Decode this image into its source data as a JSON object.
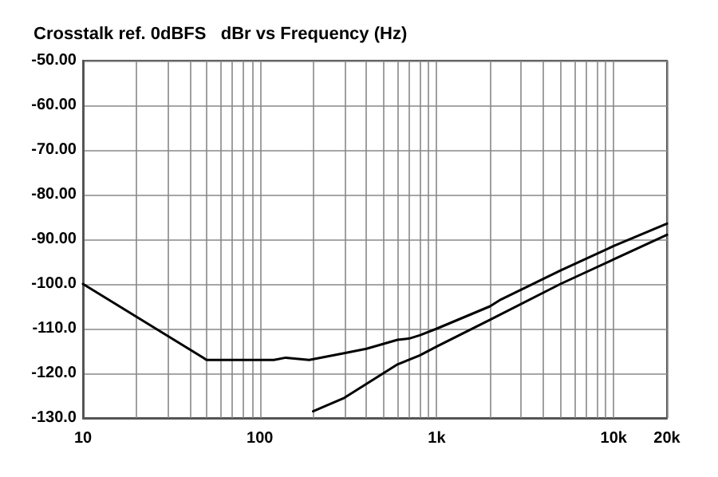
{
  "chart_data": {
    "type": "line",
    "title": "Crosstalk ref. 0dBFS   dBr vs Frequency (Hz)",
    "log": "x",
    "grid": true,
    "marker": "none",
    "line_style": "solid",
    "xlim": [
      10,
      20000
    ],
    "xticks": [
      {
        "value": 10,
        "label": "10"
      },
      {
        "value": 20,
        "label": null
      },
      {
        "value": 30,
        "label": null
      },
      {
        "value": 40,
        "label": null
      },
      {
        "value": 50,
        "label": null
      },
      {
        "value": 60,
        "label": null
      },
      {
        "value": 70,
        "label": null
      },
      {
        "value": 80,
        "label": null
      },
      {
        "value": 90,
        "label": null
      },
      {
        "value": 100,
        "label": "100"
      },
      {
        "value": 200,
        "label": null
      },
      {
        "value": 300,
        "label": null
      },
      {
        "value": 400,
        "label": null
      },
      {
        "value": 500,
        "label": null
      },
      {
        "value": 600,
        "label": null
      },
      {
        "value": 700,
        "label": null
      },
      {
        "value": 800,
        "label": null
      },
      {
        "value": 900,
        "label": null
      },
      {
        "value": 1000,
        "label": "1k"
      },
      {
        "value": 2000,
        "label": null
      },
      {
        "value": 3000,
        "label": null
      },
      {
        "value": 4000,
        "label": null
      },
      {
        "value": 5000,
        "label": null
      },
      {
        "value": 6000,
        "label": null
      },
      {
        "value": 7000,
        "label": null
      },
      {
        "value": 8000,
        "label": null
      },
      {
        "value": 9000,
        "label": null
      },
      {
        "value": 10000,
        "label": "10k"
      },
      {
        "value": 20000,
        "label": "20k"
      }
    ],
    "ylim": [
      -130,
      -50
    ],
    "yticks": [
      {
        "value": -130,
        "label": "-130.0"
      },
      {
        "value": -120,
        "label": "-120.0"
      },
      {
        "value": -110,
        "label": "-110.0"
      },
      {
        "value": -100,
        "label": "-100.0"
      },
      {
        "value": -90,
        "label": "-90.00"
      },
      {
        "value": -80,
        "label": "-80.00"
      },
      {
        "value": -70,
        "label": "-70.00"
      },
      {
        "value": -60,
        "label": "-60.00"
      },
      {
        "value": -50,
        "label": "-50.00"
      }
    ],
    "series": [
      {
        "color": "#000000",
        "x": [
          10,
          50,
          100,
          120,
          140,
          190,
          300,
          400,
          600,
          700,
          800,
          1000,
          2000,
          2300,
          5000,
          10000,
          20000
        ],
        "values": [
          -100,
          -117,
          -117,
          -117,
          -116.5,
          -117,
          -115.5,
          -114.5,
          -112.5,
          -112.2,
          -111.5,
          -110,
          -105,
          -103.5,
          -97,
          -91.5,
          -86.5
        ]
      },
      {
        "color": "#000000",
        "x": [
          200,
          300,
          600,
          800,
          1000,
          2000,
          5000,
          10000,
          20000
        ],
        "values": [
          -128.5,
          -125.5,
          -118,
          -116,
          -114,
          -108,
          -100,
          -94.5,
          -89
        ]
      }
    ]
  }
}
